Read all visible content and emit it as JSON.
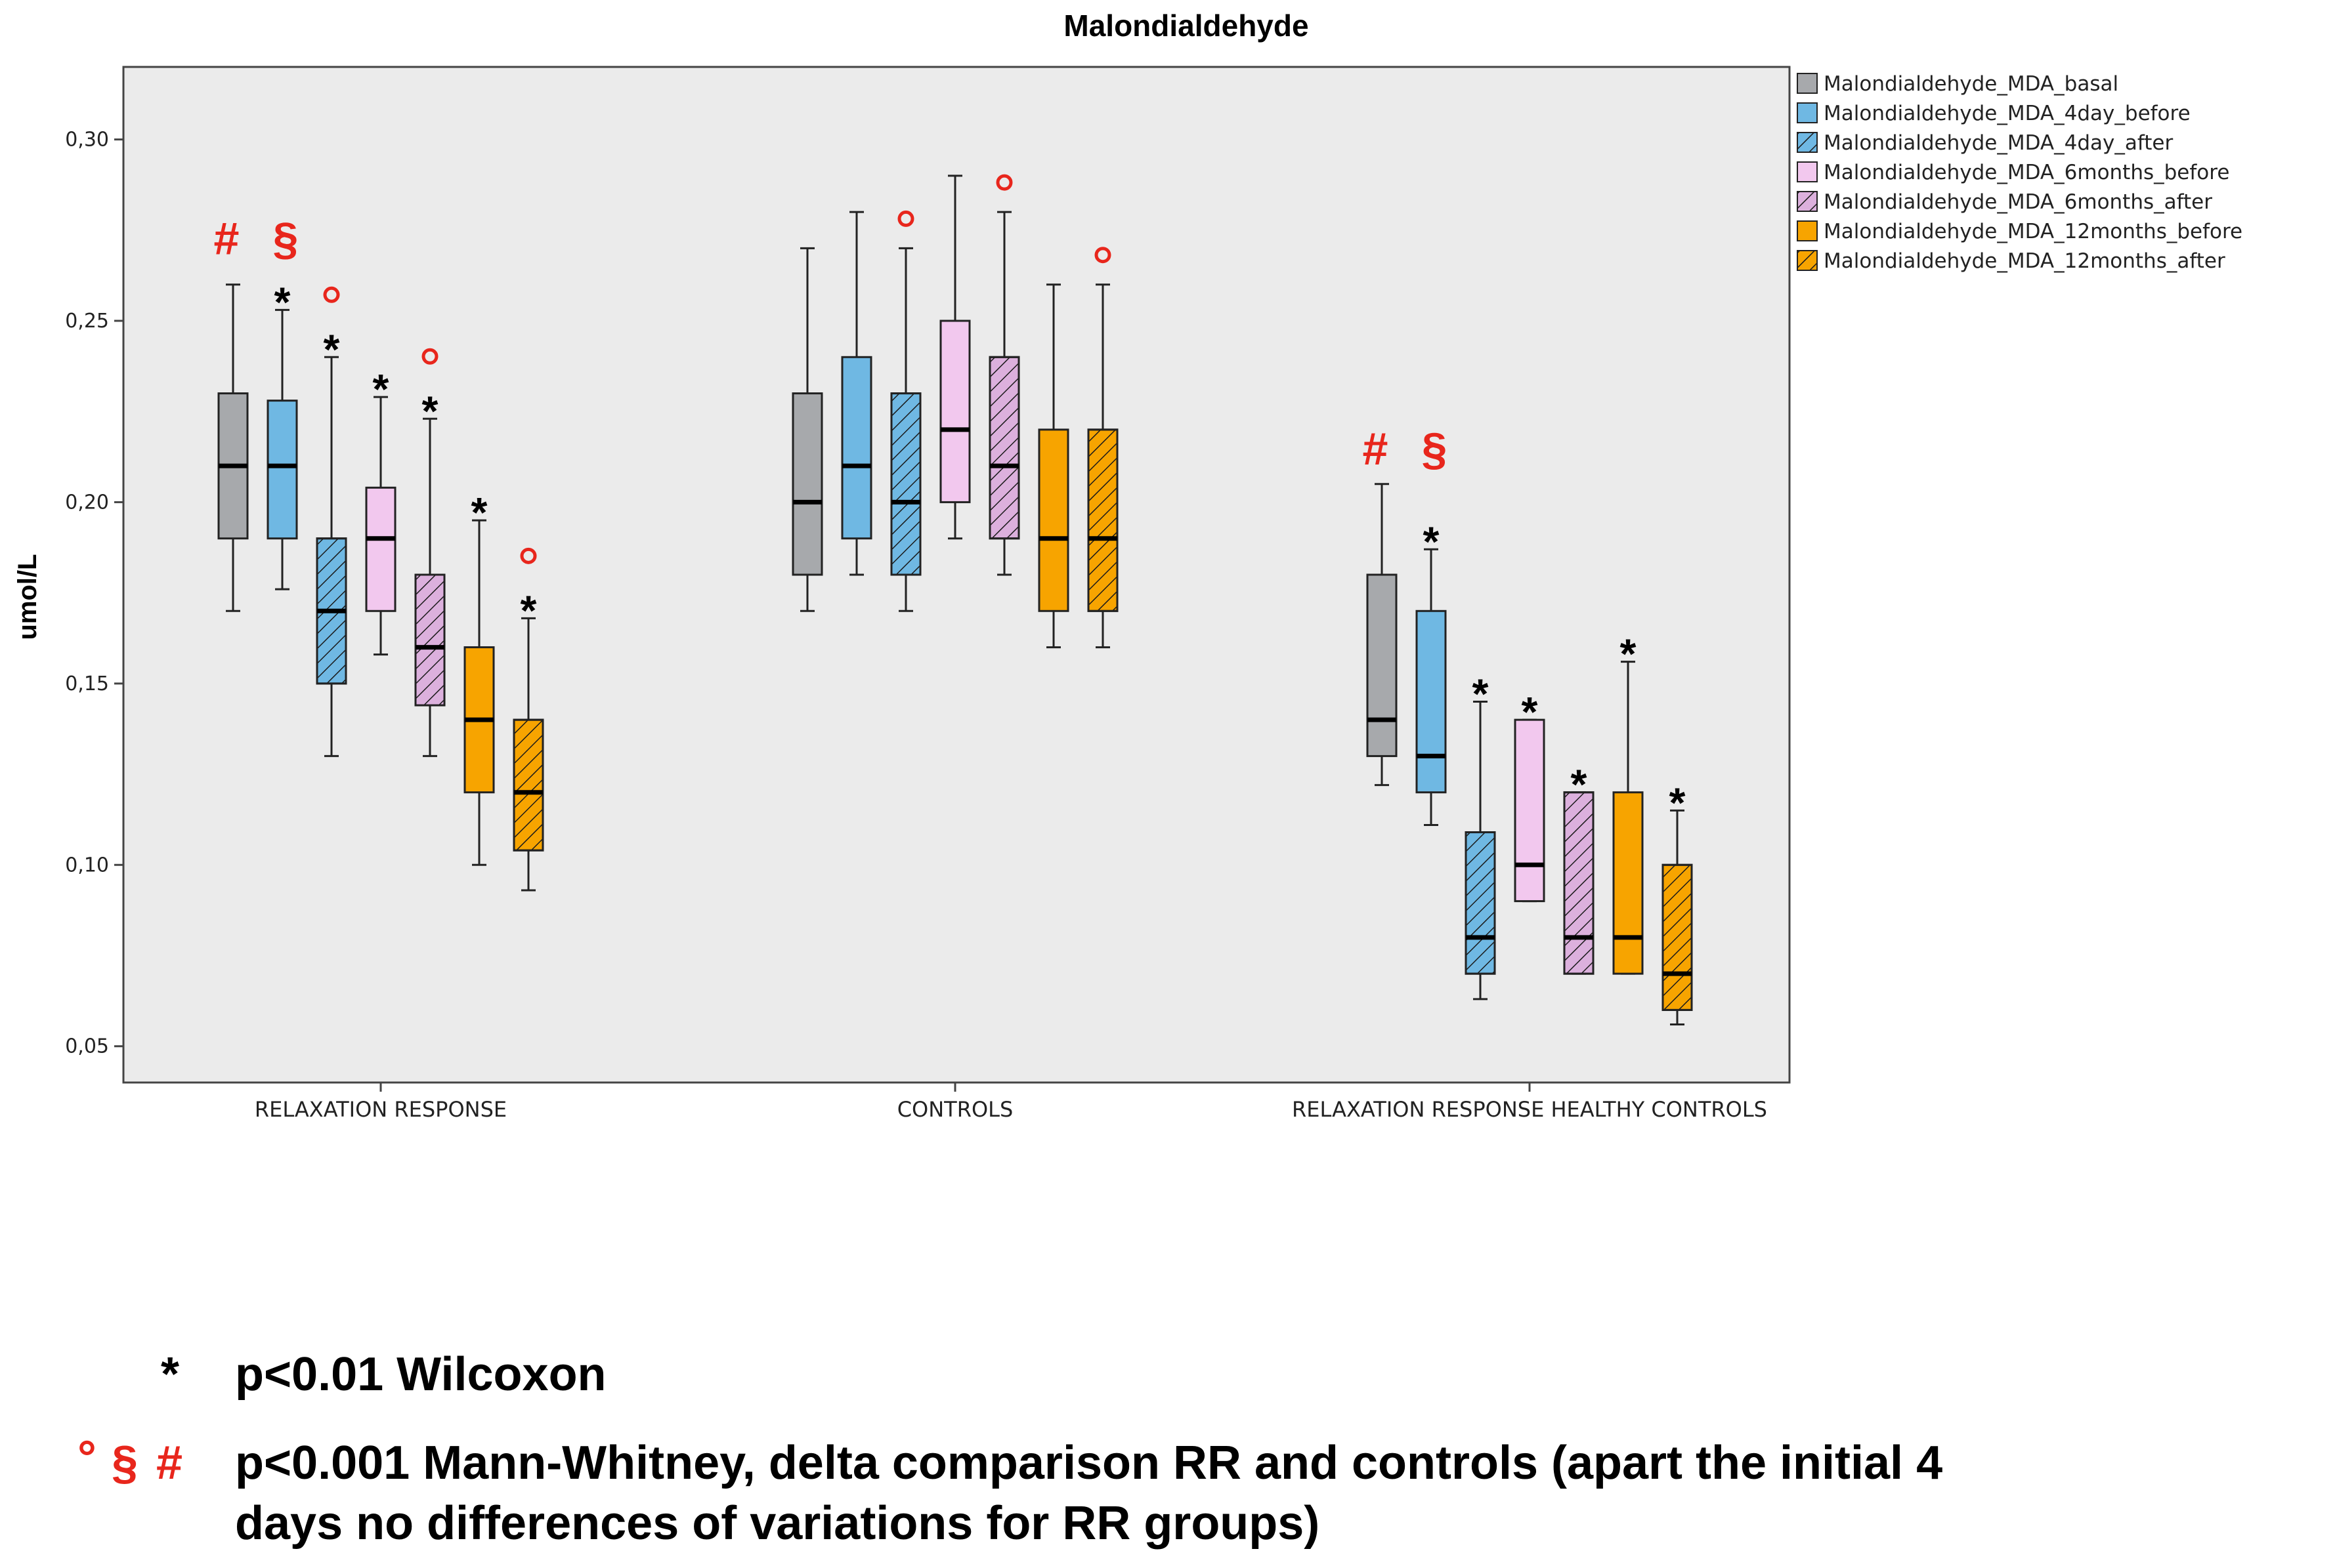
{
  "chart_data": {
    "type": "boxplot",
    "title": "Malondialdehyde",
    "ylabel": "umol/L",
    "xlabel": "",
    "ylim": [
      0.04,
      0.32
    ],
    "yticks": [
      0.05,
      0.1,
      0.15,
      0.2,
      0.25,
      0.3
    ],
    "ytick_labels": [
      "0,05",
      "0,10",
      "0,15",
      "0,20",
      "0,25",
      "0,30"
    ],
    "categories": [
      "RELAXATION RESPONSE",
      "CONTROLS",
      "RELAXATION RESPONSE HEALTHY CONTROLS"
    ],
    "legend_position": "right",
    "series": [
      {
        "name": "Malondialdehyde_MDA_basal",
        "color": "#a7a9ac",
        "hatch": false,
        "boxes": [
          {
            "min": 0.17,
            "q1": 0.19,
            "median": 0.21,
            "q3": 0.23,
            "max": 0.26
          },
          {
            "min": 0.17,
            "q1": 0.18,
            "median": 0.2,
            "q3": 0.23,
            "max": 0.27
          },
          {
            "min": 0.122,
            "q1": 0.13,
            "median": 0.14,
            "q3": 0.18,
            "max": 0.205
          }
        ]
      },
      {
        "name": "Malondialdehyde_MDA_4day_before",
        "color": "#6fb8e3",
        "hatch": false,
        "boxes": [
          {
            "min": 0.176,
            "q1": 0.19,
            "median": 0.21,
            "q3": 0.228,
            "max": 0.253
          },
          {
            "min": 0.18,
            "q1": 0.19,
            "median": 0.21,
            "q3": 0.24,
            "max": 0.28
          },
          {
            "min": 0.111,
            "q1": 0.12,
            "median": 0.13,
            "q3": 0.17,
            "max": 0.187
          }
        ]
      },
      {
        "name": "Malondialdehyde_MDA_4day_after",
        "color": "#6fb8e3",
        "hatch": true,
        "boxes": [
          {
            "min": 0.13,
            "q1": 0.15,
            "median": 0.17,
            "q3": 0.19,
            "max": 0.24
          },
          {
            "min": 0.17,
            "q1": 0.18,
            "median": 0.2,
            "q3": 0.23,
            "max": 0.27
          },
          {
            "min": 0.063,
            "q1": 0.07,
            "median": 0.08,
            "q3": 0.109,
            "max": 0.145
          }
        ]
      },
      {
        "name": "Malondialdehyde_MDA_6months_before",
        "color": "#f2c8ee",
        "hatch": false,
        "boxes": [
          {
            "min": 0.158,
            "q1": 0.17,
            "median": 0.19,
            "q3": 0.204,
            "max": 0.229
          },
          {
            "min": 0.19,
            "q1": 0.2,
            "median": 0.22,
            "q3": 0.25,
            "max": 0.29
          },
          {
            "min": 0.09,
            "q1": 0.09,
            "median": 0.1,
            "q3": 0.14,
            "max": 0.14
          }
        ]
      },
      {
        "name": "Malondialdehyde_MDA_6months_after",
        "color": "#dcb0dd",
        "hatch": true,
        "boxes": [
          {
            "min": 0.13,
            "q1": 0.144,
            "median": 0.16,
            "q3": 0.18,
            "max": 0.223
          },
          {
            "min": 0.18,
            "q1": 0.19,
            "median": 0.21,
            "q3": 0.24,
            "max": 0.28
          },
          {
            "min": 0.07,
            "q1": 0.07,
            "median": 0.08,
            "q3": 0.12,
            "max": 0.12
          }
        ]
      },
      {
        "name": "Malondialdehyde_MDA_12months_before",
        "color": "#f7a400",
        "hatch": false,
        "boxes": [
          {
            "min": 0.1,
            "q1": 0.12,
            "median": 0.14,
            "q3": 0.16,
            "max": 0.195
          },
          {
            "min": 0.16,
            "q1": 0.17,
            "median": 0.19,
            "q3": 0.22,
            "max": 0.26
          },
          {
            "min": 0.07,
            "q1": 0.07,
            "median": 0.08,
            "q3": 0.12,
            "max": 0.156
          }
        ]
      },
      {
        "name": "Malondialdehyde_MDA_12months_after",
        "color": "#f7a400",
        "hatch": true,
        "boxes": [
          {
            "min": 0.093,
            "q1": 0.104,
            "median": 0.12,
            "q3": 0.14,
            "max": 0.168
          },
          {
            "min": 0.16,
            "q1": 0.17,
            "median": 0.19,
            "q3": 0.22,
            "max": 0.26
          },
          {
            "min": 0.056,
            "q1": 0.06,
            "median": 0.07,
            "q3": 0.1,
            "max": 0.115
          }
        ]
      }
    ],
    "annotations": {
      "stars": [
        {
          "group": 0,
          "series": 1
        },
        {
          "group": 0,
          "series": 2
        },
        {
          "group": 0,
          "series": 3
        },
        {
          "group": 0,
          "series": 4
        },
        {
          "group": 0,
          "series": 5
        },
        {
          "group": 0,
          "series": 6
        },
        {
          "group": 2,
          "series": 1
        },
        {
          "group": 2,
          "series": 2
        },
        {
          "group": 2,
          "series": 3
        },
        {
          "group": 2,
          "series": 4
        },
        {
          "group": 2,
          "series": 5
        },
        {
          "group": 2,
          "series": 6
        }
      ],
      "circles": [
        {
          "group": 0,
          "series": 2
        },
        {
          "group": 0,
          "series": 4
        },
        {
          "group": 0,
          "series": 6
        },
        {
          "group": 1,
          "series": 2
        },
        {
          "group": 1,
          "series": 4
        },
        {
          "group": 1,
          "series": 6
        }
      ],
      "hash_symbol": "#",
      "section_symbol": "§",
      "hash_section_groups": [
        0,
        2
      ]
    }
  },
  "footnotes": {
    "star_symbol": "*",
    "star_text": "p<0.01 Wilcoxon",
    "circle_symbol": "°",
    "section_symbol": "§",
    "hash_symbol": "#",
    "mw_text_line1": "p<0.001 Mann-Whitney, delta comparison RR and controls (apart the initial 4",
    "mw_text_line2": "days no differences of variations for RR groups)"
  }
}
